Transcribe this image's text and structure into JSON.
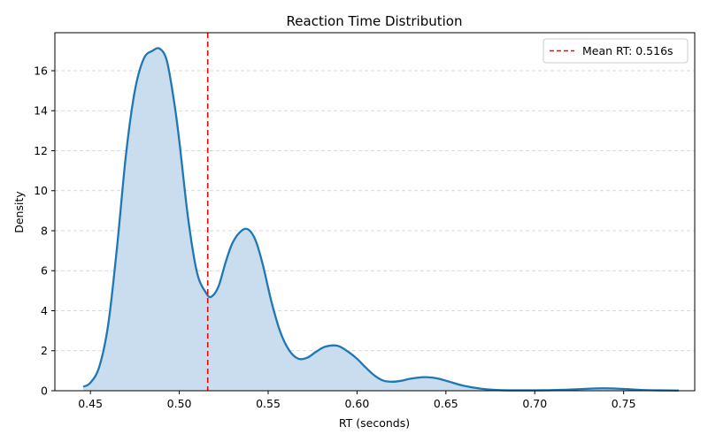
{
  "chart_data": {
    "type": "area",
    "title": "Reaction Time Distribution",
    "xlabel": "RT (seconds)",
    "ylabel": "Density",
    "xlim": [
      0.43,
      0.79
    ],
    "ylim": [
      0,
      17.9
    ],
    "xticks": [
      0.45,
      0.5,
      0.55,
      0.6,
      0.65,
      0.7,
      0.75
    ],
    "xtick_labels": [
      "0.45",
      "0.50",
      "0.55",
      "0.60",
      "0.65",
      "0.70",
      "0.75"
    ],
    "yticks": [
      0,
      2,
      4,
      6,
      8,
      10,
      12,
      14,
      16
    ],
    "ytick_labels": [
      "0",
      "2",
      "4",
      "6",
      "8",
      "10",
      "12",
      "14",
      "16"
    ],
    "grid": "y-dashed",
    "legend_position": "top-right",
    "series": [
      {
        "kind": "kde",
        "color": "#1f77b4",
        "fill_color": "#c6dbee",
        "x": [
          0.446,
          0.45,
          0.455,
          0.46,
          0.465,
          0.47,
          0.475,
          0.48,
          0.485,
          0.489,
          0.493,
          0.497,
          0.5,
          0.505,
          0.51,
          0.515,
          0.518,
          0.522,
          0.526,
          0.53,
          0.535,
          0.539,
          0.543,
          0.547,
          0.552,
          0.557,
          0.562,
          0.567,
          0.572,
          0.577,
          0.582,
          0.589,
          0.595,
          0.6,
          0.605,
          0.61,
          0.615,
          0.62,
          0.625,
          0.63,
          0.638,
          0.645,
          0.652,
          0.66,
          0.67,
          0.68,
          0.69,
          0.7,
          0.71,
          0.72,
          0.73,
          0.738,
          0.745,
          0.752,
          0.76,
          0.77,
          0.781
        ],
        "y": [
          0.2,
          0.4,
          1.2,
          3.3,
          7.2,
          11.8,
          15.0,
          16.6,
          17.0,
          17.1,
          16.5,
          14.5,
          12.5,
          8.6,
          5.9,
          4.9,
          4.7,
          5.2,
          6.4,
          7.4,
          8.0,
          8.05,
          7.5,
          6.3,
          4.4,
          2.9,
          2.0,
          1.6,
          1.65,
          1.95,
          2.2,
          2.25,
          1.95,
          1.6,
          1.15,
          0.75,
          0.5,
          0.45,
          0.5,
          0.6,
          0.68,
          0.62,
          0.45,
          0.25,
          0.1,
          0.03,
          0.02,
          0.02,
          0.03,
          0.06,
          0.1,
          0.12,
          0.11,
          0.08,
          0.04,
          0.02,
          0.01
        ]
      }
    ],
    "reference_lines": [
      {
        "orientation": "vertical",
        "value": 0.516,
        "color": "#ff0000",
        "style": "dashed",
        "label": "Mean RT: 0.516s"
      }
    ]
  }
}
